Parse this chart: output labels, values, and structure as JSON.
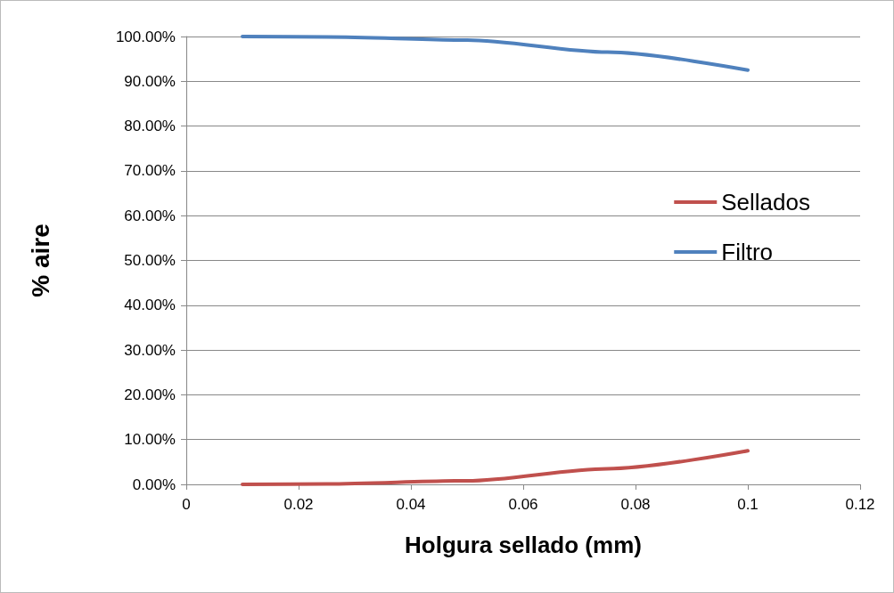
{
  "chart_data": {
    "type": "line",
    "xlabel": "Holgura sellado (mm)",
    "ylabel": "% aire",
    "x": [
      0.01,
      0.025,
      0.05,
      0.075,
      0.1
    ],
    "series": [
      {
        "name": "Sellados",
        "color": "#c0504d",
        "values": [
          0,
          0.1,
          0.8,
          3.5,
          7.5
        ]
      },
      {
        "name": "Filtro",
        "color": "#4f81bd",
        "values": [
          100,
          99.9,
          99.2,
          96.5,
          92.5
        ]
      }
    ],
    "xlim": [
      0,
      0.12
    ],
    "xticks": [
      0,
      0.02,
      0.04,
      0.06,
      0.08,
      0.1,
      0.12
    ],
    "ylim": [
      0,
      100
    ],
    "yticks": [
      {
        "value": 0,
        "label": "0.00%"
      },
      {
        "value": 10,
        "label": "10.00%"
      },
      {
        "value": 20,
        "label": "20.00%"
      },
      {
        "value": 30,
        "label": "30.00%"
      },
      {
        "value": 40,
        "label": "40.00%"
      },
      {
        "value": 50,
        "label": "50.00%"
      },
      {
        "value": 60,
        "label": "60.00%"
      },
      {
        "value": 70,
        "label": "70.00%"
      },
      {
        "value": 80,
        "label": "80.00%"
      },
      {
        "value": 90,
        "label": "90.00%"
      },
      {
        "value": 100,
        "label": "100.00%"
      }
    ],
    "grid": "y",
    "legend": "right",
    "marker": "none",
    "line_style": "solid"
  }
}
